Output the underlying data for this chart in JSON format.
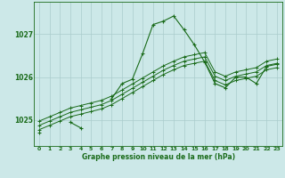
{
  "xlabel": "Graphe pression niveau de la mer (hPa)",
  "hours": [
    0,
    1,
    2,
    3,
    4,
    5,
    6,
    7,
    8,
    9,
    10,
    11,
    12,
    13,
    14,
    15,
    16,
    17,
    18,
    19,
    20,
    21,
    22,
    23
  ],
  "line_jagged": [
    1024.7,
    null,
    null,
    1024.95,
    1024.82,
    null,
    null,
    1025.5,
    1025.85,
    1025.95,
    1026.55,
    1027.22,
    1027.3,
    1027.42,
    1027.1,
    1026.75,
    1026.35,
    1025.85,
    1025.75,
    1026.0,
    1026.0,
    1025.85,
    1026.25,
    1026.3
  ],
  "line_s1": [
    1024.78,
    1024.88,
    1024.98,
    1025.08,
    1025.14,
    1025.2,
    1025.26,
    1025.36,
    1025.5,
    1025.64,
    1025.78,
    1025.92,
    1026.06,
    1026.17,
    1026.27,
    1026.32,
    1026.37,
    1025.92,
    1025.82,
    1025.92,
    1025.97,
    1026.02,
    1026.17,
    1026.22
  ],
  "line_s2": [
    1024.88,
    1024.98,
    1025.08,
    1025.18,
    1025.24,
    1025.3,
    1025.36,
    1025.46,
    1025.6,
    1025.74,
    1025.88,
    1026.02,
    1026.16,
    1026.27,
    1026.37,
    1026.42,
    1026.47,
    1026.02,
    1025.92,
    1026.02,
    1026.07,
    1026.12,
    1026.27,
    1026.32
  ],
  "line_s3": [
    1024.98,
    1025.08,
    1025.18,
    1025.28,
    1025.34,
    1025.4,
    1025.46,
    1025.56,
    1025.7,
    1025.84,
    1025.98,
    1026.12,
    1026.26,
    1026.37,
    1026.47,
    1026.52,
    1026.57,
    1026.12,
    1026.02,
    1026.12,
    1026.17,
    1026.22,
    1026.37,
    1026.42
  ],
  "line_color": "#1a6b1a",
  "bg_color": "#cce8e8",
  "grid_color": "#aacccc",
  "ylim": [
    1024.4,
    1027.75
  ],
  "yticks": [
    1025,
    1026,
    1027
  ]
}
